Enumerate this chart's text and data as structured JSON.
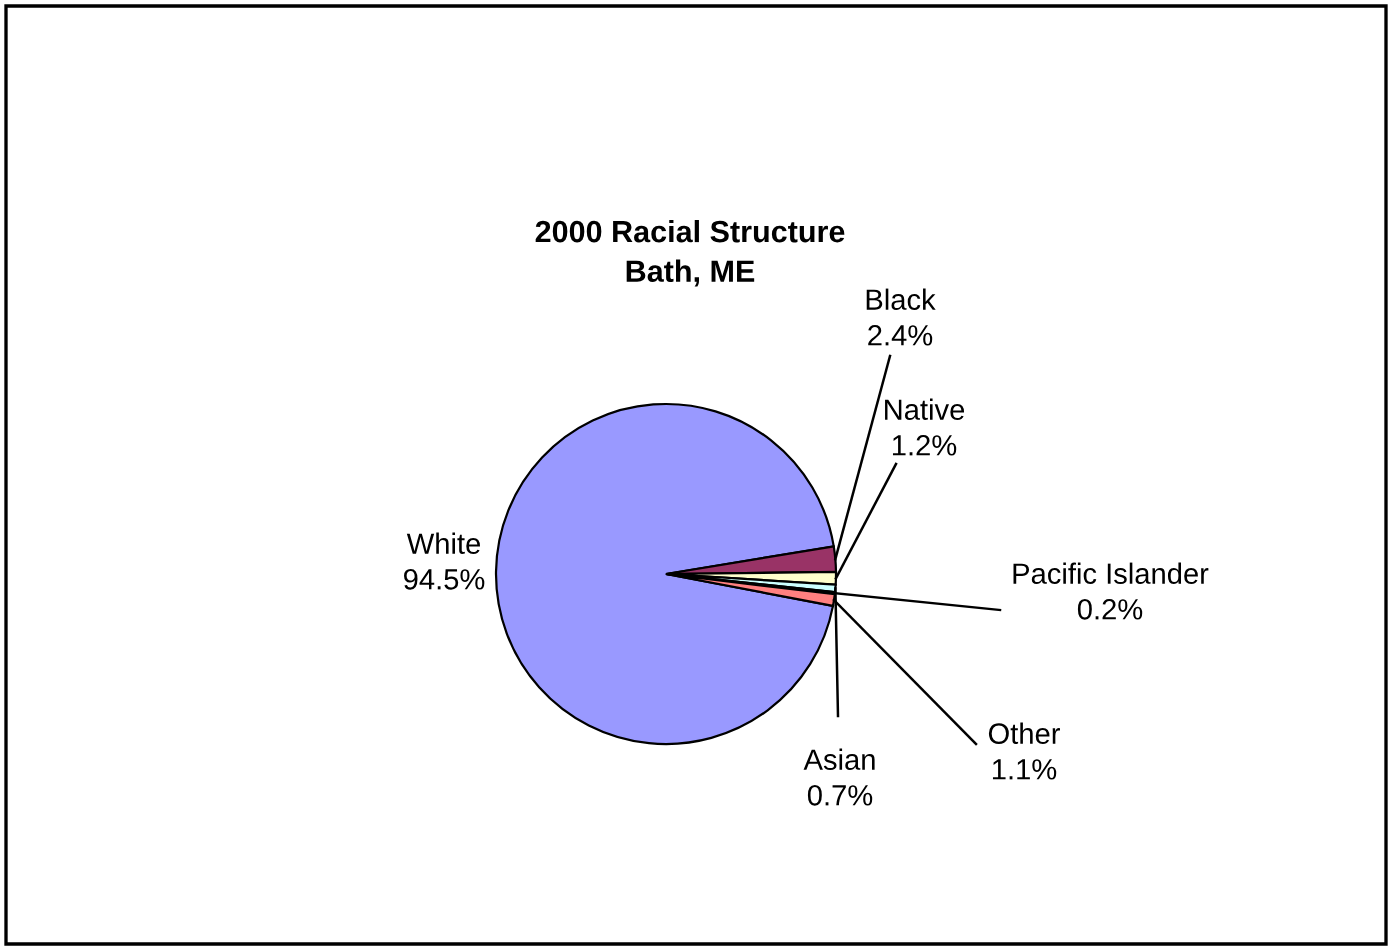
{
  "chart_data": {
    "type": "pie",
    "title": "2000 Racial Structure\nBath, ME",
    "categories": [
      "White",
      "Black",
      "Native",
      "Asian",
      "Pacific Islander",
      "Other"
    ],
    "values": [
      94.5,
      2.4,
      1.2,
      0.7,
      0.2,
      1.1
    ],
    "colors": [
      "#9999ff",
      "#993366",
      "#ffffcc",
      "#ccffff",
      "#660066",
      "#ff8080"
    ],
    "value_labels": [
      "94.5%",
      "2.4%",
      "1.2%",
      "0.7%",
      "0.2%",
      "1.1%"
    ],
    "legend": false
  }
}
